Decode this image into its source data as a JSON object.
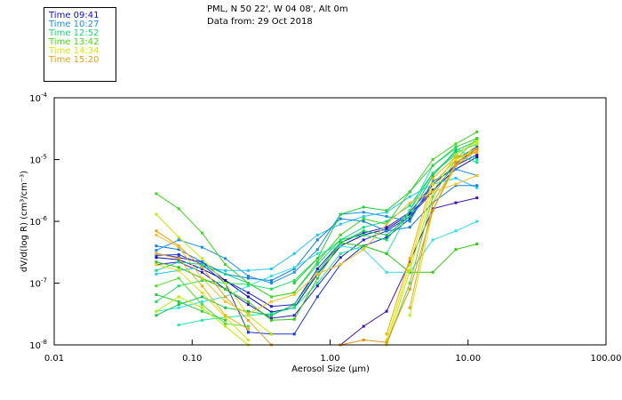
{
  "header": {
    "line1": "PML, N 50 22', W 04 08', Alt 0m",
    "line2": "Data from: 29 Oct 2018"
  },
  "legend": [
    {
      "label": "Time 09:41",
      "color": "#1010d0"
    },
    {
      "label": "Time 10:27",
      "color": "#1890e8"
    },
    {
      "label": "Time 12:52",
      "color": "#10e070"
    },
    {
      "label": "Time 13:42",
      "color": "#40e010"
    },
    {
      "label": "Time 14:34",
      "color": "#d8e800"
    },
    {
      "label": "Time 15:20",
      "color": "#f0a010"
    }
  ],
  "chart_data": {
    "type": "line",
    "title": "PML, N 50 22', W 04 08', Alt 0m",
    "subtitle": "Data from: 29 Oct 2018",
    "xlabel": "Aerosol Size (µm)",
    "ylabel": "dV/d(log R) (cm³/cm⁻³)",
    "xscale": "log",
    "yscale": "log",
    "xlim": [
      0.01,
      100
    ],
    "ylim": [
      1e-08,
      0.0001
    ],
    "xticks": [
      0.01,
      0.1,
      1,
      10,
      100
    ],
    "xtick_labels": [
      "0.01",
      "0.10",
      "1.00",
      "10.00",
      "100.00"
    ],
    "yticks": [
      1e-08,
      1e-07,
      1e-06,
      1e-05,
      0.0001
    ],
    "ytick_labels": [
      {
        "base": "10",
        "exp": "-8"
      },
      {
        "base": "10",
        "exp": "-7"
      },
      {
        "base": "10",
        "exp": "-6"
      },
      {
        "base": "10",
        "exp": "-5"
      },
      {
        "base": "10",
        "exp": "-4"
      }
    ],
    "grid": false,
    "legend_position": "top-left-outside",
    "x": [
      0.055,
      0.08,
      0.118,
      0.174,
      0.255,
      0.375,
      0.55,
      0.81,
      1.19,
      1.75,
      2.57,
      3.78,
      5.55,
      8.15,
      11.6
    ],
    "series": [
      {
        "name": "09:41 a",
        "color": "#2020c8",
        "values": [
          3e-07,
          2.6e-07,
          2.2e-07,
          1.1e-07,
          7e-08,
          4.2e-08,
          4.5e-08,
          1.7e-07,
          4.5e-07,
          6.5e-07,
          8e-07,
          1.4e-06,
          4e-06,
          8e-06,
          1.2e-05
        ]
      },
      {
        "name": "09:41 b",
        "color": "#1010b0",
        "values": [
          2.6e-07,
          2.4e-07,
          1.7e-07,
          1.1e-07,
          6e-08,
          3.4e-08,
          4e-08,
          1.4e-07,
          4e-07,
          6e-07,
          7.5e-07,
          1.3e-06,
          3.2e-06,
          7e-06,
          1.1e-05
        ]
      },
      {
        "name": "09:41 c",
        "color": "#3020c0",
        "values": [
          2e-07,
          2.2e-07,
          1.5e-07,
          8e-08,
          4.5e-08,
          2.7e-08,
          3e-08,
          9e-08,
          2.6e-07,
          5e-07,
          7e-07,
          1.2e-06,
          3e-06,
          8.5e-06,
          1.5e-05
        ]
      },
      {
        "name": "09:41 d",
        "color": "#1838d8",
        "values": [
          2.8e-07,
          2.9e-07,
          2e-07,
          1e-07,
          1.6e-08,
          1.5e-08,
          1.5e-08,
          6e-08,
          2e-07,
          4e-07,
          5.5e-07,
          1.1e-06,
          4e-06,
          1e-05,
          1.6e-05
        ]
      },
      {
        "name": "09:41 e",
        "color": "#4010b0",
        "values": [
          null,
          null,
          null,
          null,
          null,
          null,
          null,
          null,
          1e-08,
          2e-08,
          3.5e-08,
          2.2e-07,
          1.6e-06,
          2e-06,
          2.4e-06
        ]
      },
      {
        "name": "10:27 a",
        "color": "#1890e8",
        "values": [
          3.4e-07,
          5e-07,
          3.8e-07,
          2.5e-07,
          1.3e-07,
          1e-07,
          1.5e-07,
          3.5e-07,
          1.3e-06,
          1.4e-06,
          1.2e-06,
          1e-06,
          4.5e-06,
          7e-06,
          5.5e-06
        ]
      },
      {
        "name": "10:27 b",
        "color": "#20c8f0",
        "values": [
          1.4e-07,
          1.6e-07,
          1.8e-07,
          1.6e-07,
          1.6e-07,
          1.7e-07,
          3e-07,
          6e-07,
          9e-07,
          1.2e-06,
          1.4e-06,
          2.5e-06,
          4e-06,
          5e-06,
          3.5e-06
        ]
      },
      {
        "name": "10:27 c",
        "color": "#1080e0",
        "values": [
          4e-07,
          3.5e-07,
          2.2e-07,
          1.4e-07,
          1.2e-07,
          1.1e-07,
          1.7e-07,
          5e-07,
          1.1e-06,
          1e-06,
          7e-07,
          8e-07,
          2e-06,
          3.8e-06,
          3.8e-06
        ]
      },
      {
        "name": "10:27 d",
        "color": "#30e0e0",
        "values": [
          3.5e-08,
          4e-08,
          5e-08,
          6e-08,
          9e-08,
          1.3e-07,
          1.8e-07,
          3e-07,
          4e-07,
          3.5e-07,
          1.5e-07,
          1.5e-07,
          5e-07,
          7e-07,
          1e-06
        ]
      },
      {
        "name": "12:52 a",
        "color": "#10d890",
        "values": [
          1.6e-07,
          2.2e-07,
          2e-07,
          1.4e-07,
          1e-07,
          6e-08,
          7e-08,
          2e-07,
          5e-07,
          8e-07,
          1e-06,
          1.8e-06,
          6e-06,
          1.2e-05,
          9e-06
        ]
      },
      {
        "name": "12:52 b",
        "color": "#20e8a0",
        "values": [
          null,
          2.1e-08,
          2.5e-08,
          2.8e-08,
          3e-08,
          3.2e-08,
          4e-08,
          1e-07,
          3e-07,
          4e-07,
          3e-07,
          1.5e-06,
          8e-06,
          1.5e-05,
          1e-05
        ]
      },
      {
        "name": "12:52 c",
        "color": "#18e060",
        "values": [
          5e-08,
          9e-08,
          1.1e-07,
          1e-07,
          9.5e-08,
          8e-08,
          1.1e-07,
          2.5e-07,
          5e-07,
          6e-07,
          5e-07,
          1.5e-06,
          6e-06,
          1.3e-05,
          1.8e-05
        ]
      },
      {
        "name": "12:52 d",
        "color": "#10c850",
        "values": [
          3e-08,
          4.5e-08,
          6e-08,
          4e-08,
          3.5e-08,
          3e-08,
          4.5e-08,
          1.5e-07,
          4.5e-07,
          7e-07,
          6e-07,
          1.2e-06,
          5.5e-06,
          1.4e-05,
          2e-05
        ]
      },
      {
        "name": "13:42 a",
        "color": "#40d820",
        "values": [
          2.8e-06,
          1.6e-06,
          6.5e-07,
          2e-07,
          1e-07,
          6e-08,
          7e-08,
          2.2e-07,
          6e-07,
          1.1e-06,
          9e-07,
          3e-06,
          1e-05,
          1.8e-05,
          2.8e-05
        ]
      },
      {
        "name": "13:42 b",
        "color": "#30c810",
        "values": [
          2.2e-07,
          1.8e-07,
          1.2e-07,
          8e-08,
          5e-08,
          2.5e-08,
          2.6e-08,
          1.2e-07,
          4.5e-07,
          4e-07,
          3e-07,
          1.5e-07,
          1.5e-07,
          3.5e-07,
          4.3e-07
        ]
      },
      {
        "name": "13:42 c",
        "color": "#50e030",
        "values": [
          9e-08,
          1.2e-07,
          4.5e-08,
          2.2e-08,
          2e-08,
          null,
          null,
          null,
          null,
          null,
          1e-08,
          1e-07,
          2.5e-06,
          1e-05,
          2.2e-05
        ]
      },
      {
        "name": "13:42 d",
        "color": "#28d038",
        "values": [
          6.5e-08,
          5e-08,
          3.5e-08,
          2.5e-08,
          null,
          null,
          1e-07,
          2.5e-07,
          1.3e-06,
          1.7e-06,
          1.5e-06,
          3e-06,
          8e-06,
          1.6e-05,
          2.2e-05
        ]
      },
      {
        "name": "14:34 a",
        "color": "#c8e800",
        "values": [
          1.3e-06,
          5.5e-07,
          2.5e-07,
          1e-07,
          3e-08,
          1.5e-08,
          null,
          null,
          null,
          null,
          1e-08,
          1.6e-07,
          3e-06,
          1.2e-05,
          2e-05
        ]
      },
      {
        "name": "14:34 b",
        "color": "#e0e000",
        "values": [
          2e-07,
          1.6e-07,
          7e-08,
          2.8e-08,
          1.2e-08,
          null,
          null,
          null,
          null,
          null,
          1.2e-08,
          2e-07,
          4e-06,
          1e-05,
          1.5e-05
        ]
      },
      {
        "name": "14:34 c",
        "color": "#b8f000",
        "values": [
          3.5e-08,
          6e-08,
          4e-08,
          2e-08,
          1e-08,
          null,
          null,
          null,
          null,
          null,
          null,
          3e-08,
          1.5e-06,
          8e-06,
          1.8e-05
        ]
      },
      {
        "name": "15:20 a",
        "color": "#f0a010",
        "values": [
          7e-07,
          4e-07,
          1.8e-07,
          6e-08,
          2.5e-08,
          1e-08,
          null,
          null,
          null,
          null,
          null,
          4e-08,
          2e-06,
          8e-06,
          1.4e-05
        ]
      },
      {
        "name": "15:20 b",
        "color": "#f8c020",
        "values": [
          6e-07,
          3.8e-07,
          1.2e-07,
          5e-08,
          3.2e-08,
          5e-08,
          6.5e-08,
          1.4e-07,
          2e-07,
          3.5e-07,
          9e-07,
          2e-06,
          3e-06,
          4e-06,
          5.5e-06
        ]
      },
      {
        "name": "15:20 c",
        "color": "#e89010",
        "values": [
          null,
          null,
          null,
          null,
          null,
          null,
          null,
          null,
          1e-08,
          1.2e-08,
          1.1e-08,
          8e-08,
          1.5e-06,
          9e-06,
          1.5e-05
        ]
      },
      {
        "name": "15:20 d",
        "color": "#f8b000",
        "values": [
          3e-07,
          2.5e-07,
          9e-08,
          3e-08,
          1.8e-08,
          null,
          null,
          null,
          null,
          null,
          1.5e-08,
          2.5e-07,
          5e-06,
          1.1e-05,
          1.3e-05
        ]
      }
    ]
  }
}
